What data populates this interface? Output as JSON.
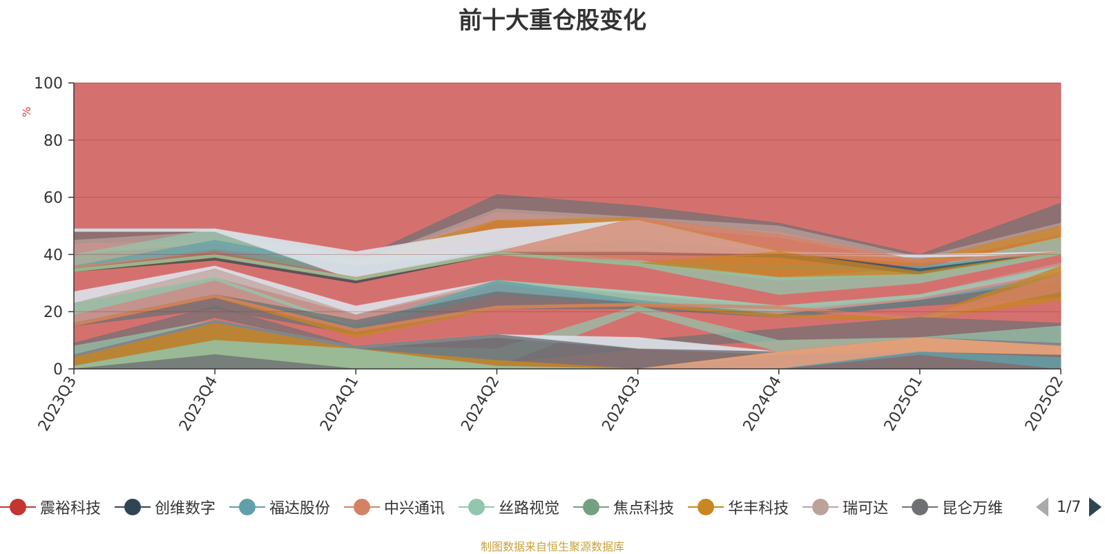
{
  "title": "前十大重仓股变化",
  "source": "制图数据来自恒生聚源数据库",
  "pager": {
    "text": "1/7"
  },
  "chart_data": {
    "type": "area",
    "stacked": false,
    "ylabel": "%",
    "ylim": [
      0,
      100
    ],
    "yticks": [
      "0",
      "20",
      "40",
      "60",
      "80",
      "100"
    ],
    "categories": [
      "2023Q3",
      "2023Q4",
      "2024Q1",
      "2024Q2",
      "2024Q3",
      "2024Q4",
      "2025Q1",
      "2025Q2"
    ],
    "grid": true,
    "legend_position": "bottom",
    "legend": [
      "震裕科技",
      "创维数字",
      "福达股份",
      "中兴通讯",
      "丝路视觉",
      "焦点科技",
      "华丰科技",
      "瑞可达",
      "昆仑万维"
    ],
    "legend_colors": [
      "#c23531",
      "#2f4554",
      "#61a0a8",
      "#d48265",
      "#91c7ae",
      "#749f83",
      "#ca8622",
      "#bda29a",
      "#6e7074"
    ],
    "layers": [
      {
        "color": "#c23531",
        "opacity": 0.7,
        "upper": [
          100,
          100,
          100,
          100,
          100,
          100,
          100,
          100
        ],
        "lower": [
          0,
          0,
          0,
          0,
          0,
          0,
          0,
          0
        ]
      },
      {
        "color": "#6e7074",
        "opacity": 0.7,
        "upper": [
          49,
          49,
          38,
          61,
          57,
          51,
          40,
          58
        ],
        "lower": [
          44,
          45,
          36,
          55,
          52,
          48,
          38,
          50
        ]
      },
      {
        "color": "#bda29a",
        "opacity": 0.7,
        "upper": [
          45,
          48,
          37,
          56,
          53,
          50,
          39,
          51
        ],
        "lower": [
          40,
          44,
          33,
          52,
          50,
          46,
          37,
          47
        ]
      },
      {
        "color": "#ca8622",
        "opacity": 0.7,
        "upper": [
          36,
          40,
          38,
          52,
          53,
          42,
          38,
          50
        ],
        "lower": [
          34,
          38,
          35,
          49,
          51,
          40,
          36,
          45
        ]
      },
      {
        "color": "#91c7ae",
        "opacity": 0.7,
        "upper": [
          40,
          49,
          39,
          42,
          38,
          32,
          35,
          46
        ],
        "lower": [
          35,
          42,
          36,
          41,
          37,
          31,
          33,
          40
        ]
      },
      {
        "color": "#61a0a8",
        "opacity": 0.7,
        "upper": [
          36,
          45,
          36,
          41,
          37,
          36,
          36,
          41
        ],
        "lower": [
          34,
          40,
          33,
          40,
          36,
          35,
          34,
          40
        ]
      },
      {
        "color": "#2f4554",
        "opacity": 0.7,
        "upper": [
          35,
          41,
          32,
          42,
          45,
          41,
          35,
          41
        ],
        "lower": [
          34,
          38,
          30,
          40,
          40,
          39,
          33,
          40
        ]
      },
      {
        "color": "#dbe2ea",
        "opacity": 0.9,
        "upper": [
          49,
          49,
          41,
          49,
          52,
          41,
          40,
          41
        ],
        "lower": [
          48,
          48,
          31,
          41,
          41,
          40,
          39,
          40
        ]
      },
      {
        "color": "#d48265",
        "opacity": 0.7,
        "upper": [
          36,
          41,
          32,
          41,
          53,
          47,
          38,
          41
        ],
        "lower": [
          35,
          40,
          31,
          40,
          38,
          40,
          37,
          40
        ]
      },
      {
        "color": "#ca8622",
        "opacity": 0.75,
        "upper": [
          35,
          40,
          32,
          41,
          37,
          41,
          34,
          41
        ],
        "lower": [
          34,
          39,
          31,
          40,
          36,
          32,
          32,
          40
        ]
      },
      {
        "color": "#91c7ae",
        "opacity": 0.75,
        "upper": [
          35,
          40,
          32,
          41,
          37,
          32,
          33,
          41
        ],
        "lower": [
          34,
          39,
          31,
          40,
          36,
          26,
          30,
          40
        ]
      },
      {
        "color": "#dbe2ea",
        "opacity": 0.9,
        "upper": [
          27,
          36,
          22,
          31,
          27,
          22,
          26,
          36
        ],
        "lower": [
          23,
          32,
          19,
          30,
          26,
          21,
          25,
          34
        ]
      },
      {
        "color": "#bda29a",
        "opacity": 0.7,
        "upper": [
          23,
          35,
          19,
          31,
          26,
          22,
          26,
          37
        ],
        "lower": [
          16,
          26,
          14,
          27,
          23,
          19,
          23,
          33
        ]
      },
      {
        "color": "#91c7ae",
        "opacity": 0.75,
        "upper": [
          23,
          32,
          15,
          31,
          27,
          22,
          26,
          36
        ],
        "lower": [
          19,
          31,
          14,
          30,
          23,
          20,
          25,
          35
        ]
      },
      {
        "color": "#61a0a8",
        "opacity": 0.75,
        "upper": [
          16,
          26,
          15,
          31,
          24,
          19,
          24,
          33
        ],
        "lower": [
          15,
          25,
          14,
          26,
          22,
          18,
          22,
          31
        ]
      },
      {
        "color": "#6e7074",
        "opacity": 0.75,
        "upper": [
          16,
          26,
          17,
          27,
          23,
          19,
          24,
          31
        ],
        "lower": [
          15,
          21,
          12,
          21,
          21,
          18,
          22,
          25
        ]
      },
      {
        "color": "#ca8622",
        "opacity": 0.75,
        "upper": [
          16,
          26,
          14,
          22,
          23,
          19,
          18,
          36
        ],
        "lower": [
          15,
          25,
          11,
          21,
          22,
          18,
          17,
          24
        ]
      },
      {
        "color": "#d48265",
        "opacity": 0.75,
        "upper": [
          16,
          26,
          14,
          22,
          23,
          22,
          18,
          33
        ],
        "lower": [
          15,
          25,
          13,
          21,
          22,
          21,
          17,
          27
        ]
      },
      {
        "color": "#6e7074",
        "opacity": 0.7,
        "upper": [
          9,
          22,
          8,
          12,
          10,
          14,
          18,
          16
        ],
        "lower": [
          5,
          18,
          7,
          2,
          7,
          10,
          11,
          9
        ]
      },
      {
        "color": "#91c7ae",
        "opacity": 0.7,
        "upper": [
          8,
          17,
          8,
          7,
          22,
          10,
          11,
          15
        ],
        "lower": [
          1,
          10,
          7,
          1,
          20,
          6,
          10,
          9
        ]
      },
      {
        "color": "#dbe2ea",
        "opacity": 0.9,
        "upper": [
          5,
          17,
          8,
          12,
          11,
          6,
          11,
          9
        ],
        "lower": [
          4,
          16,
          7,
          11,
          7,
          5,
          10,
          8
        ]
      },
      {
        "color": "#6e7074",
        "opacity": 0.8,
        "upper": [
          5,
          17,
          8,
          12,
          7,
          6,
          11,
          9
        ],
        "lower": [
          0,
          0,
          0,
          0,
          0,
          0,
          0,
          0
        ]
      },
      {
        "color": "#ca8622",
        "opacity": 0.8,
        "upper": [
          4,
          16,
          7,
          3,
          0,
          6,
          11,
          8
        ],
        "lower": [
          0,
          0,
          0,
          0,
          0,
          5,
          6,
          5
        ]
      },
      {
        "color": "#91c7ae",
        "opacity": 0.8,
        "upper": [
          1,
          10,
          7,
          1,
          0,
          0,
          0,
          0
        ],
        "lower": [
          0,
          0,
          0,
          0,
          0,
          0,
          0,
          0
        ]
      },
      {
        "color": "#6e7074",
        "opacity": 0.8,
        "upper": [
          0,
          5,
          0,
          0,
          0,
          0,
          0,
          0
        ],
        "lower": [
          0,
          0,
          0,
          0,
          0,
          0,
          0,
          0
        ]
      },
      {
        "color": "#e6a586",
        "opacity": 0.85,
        "upper": [
          0,
          0,
          0,
          0,
          0,
          6,
          11,
          8
        ],
        "lower": [
          0,
          0,
          0,
          0,
          0,
          0,
          6,
          5
        ]
      },
      {
        "color": "#61a0a8",
        "opacity": 0.8,
        "upper": [
          0,
          0,
          0,
          0,
          0,
          0,
          6,
          4
        ],
        "lower": [
          0,
          0,
          0,
          0,
          0,
          0,
          5,
          0
        ]
      }
    ]
  }
}
